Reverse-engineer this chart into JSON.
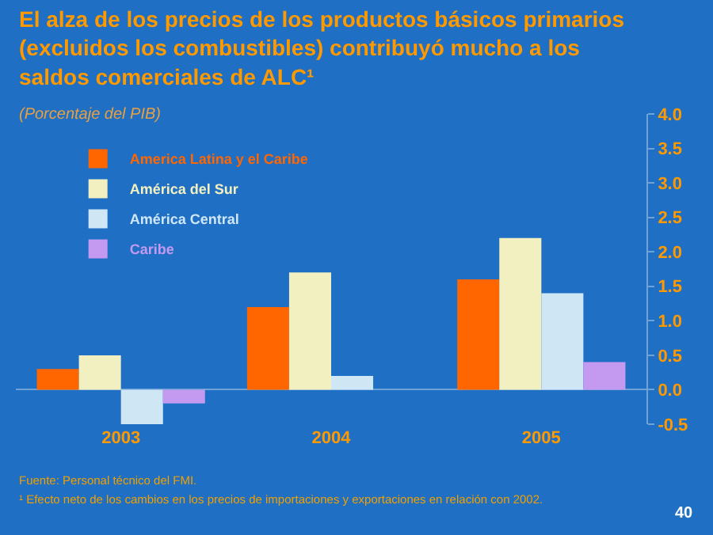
{
  "chart_data": {
    "type": "bar",
    "title": "El alza de los precios de los productos básicos primarios (excluidos los combustibles) contribuyó mucho a los saldos comerciales de ALC¹",
    "subtitle": "(Porcentaje del PIB)",
    "categories": [
      "2003",
      "2004",
      "2005"
    ],
    "series": [
      {
        "name": "America Latina y el Caribe",
        "color": "#ff6600",
        "values": [
          0.3,
          1.2,
          1.6
        ]
      },
      {
        "name": "América del Sur",
        "color": "#f2f0c0",
        "values": [
          0.5,
          1.7,
          2.2
        ]
      },
      {
        "name": "América Central",
        "color": "#cfe6f5",
        "values": [
          -0.5,
          0.2,
          1.4
        ]
      },
      {
        "name": "Caribe",
        "color": "#c49af0",
        "values": [
          -0.2,
          null,
          0.4
        ]
      }
    ],
    "ylim": [
      -0.5,
      4.0
    ],
    "yticks": [
      {
        "value": -0.5,
        "label": "-0.5"
      },
      {
        "value": 0,
        "label": "0.0"
      },
      {
        "value": 0.5,
        "label": "0.5"
      },
      {
        "value": 1,
        "label": "1.0"
      },
      {
        "value": 1.5,
        "label": "1.5"
      },
      {
        "value": 2,
        "label": "2.0"
      },
      {
        "value": 2.5,
        "label": "2.5"
      },
      {
        "value": 3,
        "label": "3.0"
      },
      {
        "value": 3.5,
        "label": "3.5"
      },
      {
        "value": 4,
        "label": "4.0"
      }
    ],
    "grid": false,
    "legend": "top left",
    "annotations": [
      "Fuente: Personal técnico del FMI.",
      "¹ Efecto neto de los cambios en los precios de importaciones y exportaciones en relación con 2002.",
      "40"
    ]
  }
}
